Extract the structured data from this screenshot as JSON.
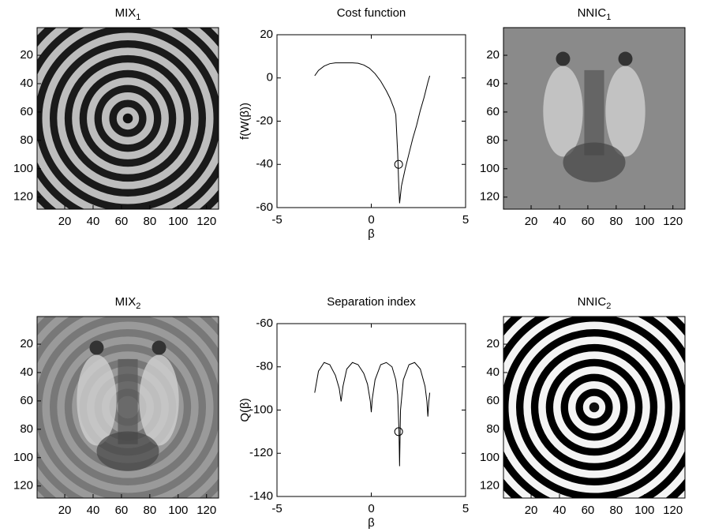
{
  "chart_data": [
    {
      "type": "image",
      "title": "MIX",
      "title_subscript": "1",
      "xlim": [
        0.5,
        128.5
      ],
      "ylim": [
        0.5,
        128.5
      ],
      "xticks": [
        20,
        40,
        60,
        80,
        100,
        120
      ],
      "yticks": [
        20,
        40,
        60,
        80,
        100,
        120
      ]
    },
    {
      "type": "line",
      "title": "Cost function",
      "xlabel": "β",
      "ylabel": "f(W(β))",
      "color": "#000000",
      "x": [
        -3.0,
        -2.8,
        -2.5,
        -2.2,
        -1.9,
        -1.6,
        -1.3,
        -1.0,
        -0.7,
        -0.4,
        -0.1,
        0.2,
        0.5,
        0.8,
        1.0,
        1.2,
        1.3,
        1.4,
        1.45,
        1.5,
        1.6,
        1.8,
        2.0,
        2.2,
        2.4,
        2.6,
        2.8,
        3.0,
        3.1
      ],
      "values": [
        1,
        3.5,
        5.5,
        6.6,
        7,
        7,
        7,
        7,
        6.8,
        6,
        4.5,
        2,
        -1.5,
        -6,
        -9.5,
        -14,
        -17,
        -35,
        -48,
        -58,
        -50,
        -42,
        -35,
        -28,
        -22,
        -15,
        -9,
        -2,
        1
      ],
      "highlight": {
        "x": 1.45,
        "y": -40
      },
      "xlim": [
        -5,
        5
      ],
      "ylim": [
        -60,
        20
      ],
      "xticks": [
        -5,
        0,
        5
      ],
      "yticks": [
        -60,
        -40,
        -20,
        0,
        20
      ]
    },
    {
      "type": "image",
      "title": "NNIC",
      "title_subscript": "1",
      "xlim": [
        0.5,
        128.5
      ],
      "ylim": [
        0.5,
        128.5
      ],
      "xticks": [
        20,
        40,
        60,
        80,
        100,
        120
      ],
      "yticks": [
        20,
        40,
        60,
        80,
        100,
        120
      ]
    },
    {
      "type": "image",
      "title": "MIX",
      "title_subscript": "2",
      "xlim": [
        0.5,
        128.5
      ],
      "ylim": [
        0.5,
        128.5
      ],
      "xticks": [
        20,
        40,
        60,
        80,
        100,
        120
      ],
      "yticks": [
        20,
        40,
        60,
        80,
        100,
        120
      ]
    },
    {
      "type": "line",
      "title": "Separation index",
      "xlabel": "β",
      "ylabel": "Q(β)",
      "color": "#000000",
      "x": [
        -3.0,
        -2.8,
        -2.5,
        -2.2,
        -1.9,
        -1.7,
        -1.6,
        -1.5,
        -1.3,
        -1.0,
        -0.7,
        -0.4,
        -0.2,
        -0.05,
        0,
        0.05,
        0.2,
        0.5,
        0.8,
        1.1,
        1.3,
        1.4,
        1.47,
        1.5,
        1.55,
        1.7,
        2.0,
        2.3,
        2.6,
        2.85,
        2.95,
        3.0,
        3.05,
        3.1
      ],
      "values": [
        -92,
        -82,
        -78,
        -79,
        -84,
        -90,
        -96,
        -89,
        -81,
        -78,
        -79,
        -83,
        -88,
        -96,
        -101,
        -95,
        -86,
        -79,
        -78,
        -80,
        -86,
        -93,
        -110,
        -126,
        -100,
        -86,
        -79,
        -78,
        -81,
        -89,
        -96,
        -103,
        -96,
        -92
      ],
      "highlight": {
        "x": 1.45,
        "y": -110
      },
      "xlim": [
        -5,
        5
      ],
      "ylim": [
        -140,
        -60
      ],
      "xticks": [
        -5,
        0,
        5
      ],
      "yticks": [
        -140,
        -120,
        -100,
        -80,
        -60
      ]
    },
    {
      "type": "image",
      "title": "NNIC",
      "title_subscript": "2",
      "xlim": [
        0.5,
        128.5
      ],
      "ylim": [
        0.5,
        128.5
      ],
      "xticks": [
        20,
        40,
        60,
        80,
        100,
        120
      ],
      "yticks": [
        20,
        40,
        60,
        80,
        100,
        120
      ]
    }
  ]
}
